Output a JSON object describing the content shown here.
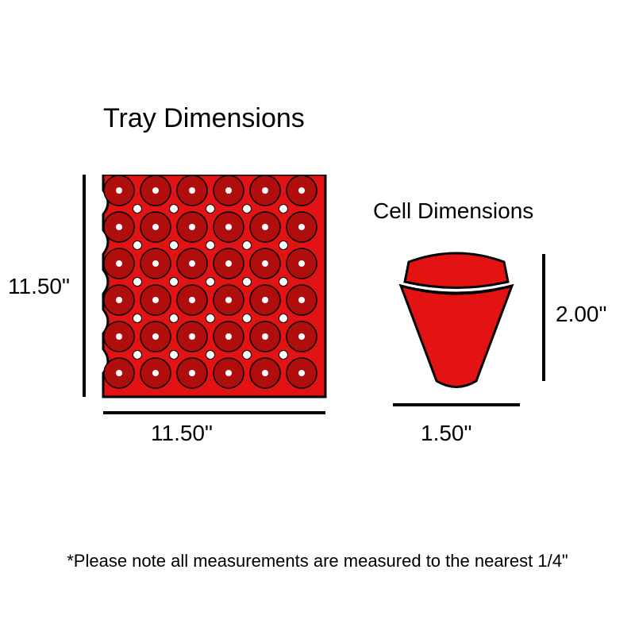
{
  "infographic": {
    "type": "infographic",
    "background_color": "#ffffff",
    "text_color": "#000000",
    "illustration_fill": "#e31313",
    "illustration_stroke": "#000000",
    "dimension_line_color": "#000000",
    "tray": {
      "title": "Tray Dimensions",
      "title_fontsize": 34,
      "height_label": "11.50\"",
      "width_label": "11.50\"",
      "label_fontsize": 28,
      "grid_rows": 6,
      "grid_cols": 6,
      "shape": "square-notched-sides"
    },
    "cell": {
      "title": "Cell Dimensions",
      "title_fontsize": 28,
      "height_label": "2.00\"",
      "width_label": "1.50\"",
      "label_fontsize": 28,
      "shape": "tapered-cup"
    },
    "footnote": "*Please note all measurements are measured to the nearest 1/4\"",
    "footnote_fontsize": 22
  }
}
